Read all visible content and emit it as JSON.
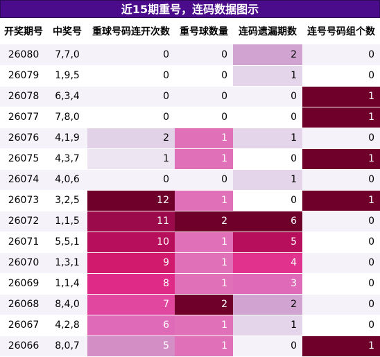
{
  "title": "近15期重号，连码数据图示",
  "headers": [
    "开奖期号",
    "中奖号",
    "重球号码连开次数",
    "重号球数量",
    "连码遗漏期数",
    "连号号码组个数"
  ],
  "colors": {
    "title_bg": "#4b0c8c",
    "row_odd": "#f5f3f9",
    "row_even": "#ffffff"
  },
  "rows": [
    {
      "period": "26080",
      "numbers": "7,7,0",
      "repeat_streak": 0,
      "repeat_count": 0,
      "consec_miss": 2,
      "consec_groups": 0
    },
    {
      "period": "26079",
      "numbers": "1,9,5",
      "repeat_streak": 0,
      "repeat_count": 0,
      "consec_miss": 1,
      "consec_groups": 0
    },
    {
      "period": "26078",
      "numbers": "6,3,4",
      "repeat_streak": 0,
      "repeat_count": 0,
      "consec_miss": 0,
      "consec_groups": 1
    },
    {
      "period": "26077",
      "numbers": "7,8,0",
      "repeat_streak": 0,
      "repeat_count": 0,
      "consec_miss": 0,
      "consec_groups": 1
    },
    {
      "period": "26076",
      "numbers": "4,1,9",
      "repeat_streak": 2,
      "repeat_count": 1,
      "consec_miss": 1,
      "consec_groups": 0
    },
    {
      "period": "26075",
      "numbers": "4,3,7",
      "repeat_streak": 1,
      "repeat_count": 1,
      "consec_miss": 0,
      "consec_groups": 1
    },
    {
      "period": "26074",
      "numbers": "4,0,6",
      "repeat_streak": 0,
      "repeat_count": 0,
      "consec_miss": 1,
      "consec_groups": 0
    },
    {
      "period": "26073",
      "numbers": "3,2,5",
      "repeat_streak": 12,
      "repeat_count": 1,
      "consec_miss": 0,
      "consec_groups": 1
    },
    {
      "period": "26072",
      "numbers": "1,1,5",
      "repeat_streak": 11,
      "repeat_count": 2,
      "consec_miss": 6,
      "consec_groups": 0
    },
    {
      "period": "26071",
      "numbers": "5,5,1",
      "repeat_streak": 10,
      "repeat_count": 1,
      "consec_miss": 5,
      "consec_groups": 0
    },
    {
      "period": "26070",
      "numbers": "1,3,1",
      "repeat_streak": 9,
      "repeat_count": 1,
      "consec_miss": 4,
      "consec_groups": 0
    },
    {
      "period": "26069",
      "numbers": "1,1,4",
      "repeat_streak": 8,
      "repeat_count": 1,
      "consec_miss": 3,
      "consec_groups": 0
    },
    {
      "period": "26068",
      "numbers": "8,4,0",
      "repeat_streak": 7,
      "repeat_count": 2,
      "consec_miss": 2,
      "consec_groups": 0
    },
    {
      "period": "26067",
      "numbers": "4,2,8",
      "repeat_streak": 6,
      "repeat_count": 1,
      "consec_miss": 1,
      "consec_groups": 0
    },
    {
      "period": "26066",
      "numbers": "8,0,7",
      "repeat_streak": 5,
      "repeat_count": 1,
      "consec_miss": 0,
      "consec_groups": 1
    }
  ]
}
